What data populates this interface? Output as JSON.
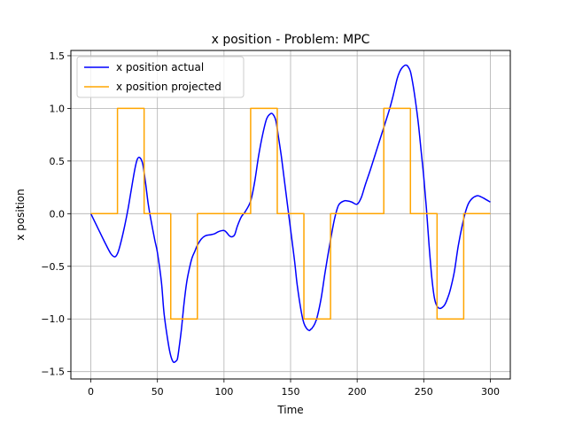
{
  "chart_data": {
    "type": "line",
    "title": "x position - Problem: MPC",
    "xlabel": "Time",
    "ylabel": "x position",
    "xlim": [
      -15,
      315
    ],
    "ylim": [
      -1.57,
      1.55
    ],
    "xticks": [
      0,
      50,
      100,
      150,
      200,
      250,
      300
    ],
    "yticks": [
      -1.5,
      -1.0,
      -0.5,
      0.0,
      0.5,
      1.0,
      1.5
    ],
    "xtick_labels": [
      "0",
      "50",
      "100",
      "150",
      "200",
      "250",
      "300"
    ],
    "ytick_labels": [
      "−1.5",
      "−1.0",
      "−0.5",
      "0.0",
      "0.5",
      "1.0",
      "1.5"
    ],
    "grid": true,
    "legend_position": "upper-left",
    "series": [
      {
        "name": "x position actual",
        "color": "#0000ff",
        "x": [
          0,
          5,
          10,
          15,
          18,
          20,
          22,
          25,
          28,
          30,
          33,
          35,
          37,
          39,
          41,
          43,
          45,
          48,
          50,
          53,
          55,
          58,
          60,
          62,
          64,
          65,
          66,
          68,
          70,
          72,
          74,
          76,
          78,
          80,
          83,
          86,
          90,
          93,
          96,
          100,
          102,
          104,
          106,
          108,
          110,
          113,
          116,
          120,
          123,
          126,
          129,
          132,
          135,
          137,
          139,
          141,
          143,
          145,
          148,
          150,
          153,
          155,
          158,
          160,
          162,
          164,
          165,
          166,
          168,
          170,
          173,
          176,
          180,
          183,
          186,
          190,
          193,
          196,
          200,
          203,
          206,
          210,
          215,
          220,
          224,
          227,
          230,
          232,
          234,
          236,
          237,
          238,
          240,
          242,
          244,
          246,
          248,
          250,
          252,
          254,
          256,
          258,
          260,
          262,
          264,
          266,
          268,
          270,
          273,
          276,
          280,
          283,
          286,
          290,
          293,
          296,
          300
        ],
        "y": [
          0.0,
          -0.13,
          -0.26,
          -0.38,
          -0.41,
          -0.38,
          -0.3,
          -0.14,
          0.05,
          0.2,
          0.42,
          0.52,
          0.53,
          0.47,
          0.3,
          0.1,
          -0.05,
          -0.25,
          -0.37,
          -0.65,
          -0.95,
          -1.22,
          -1.35,
          -1.41,
          -1.4,
          -1.38,
          -1.3,
          -1.1,
          -0.85,
          -0.65,
          -0.52,
          -0.42,
          -0.36,
          -0.3,
          -0.24,
          -0.21,
          -0.2,
          -0.19,
          -0.17,
          -0.16,
          -0.18,
          -0.21,
          -0.22,
          -0.2,
          -0.12,
          -0.03,
          0.02,
          0.12,
          0.3,
          0.55,
          0.75,
          0.9,
          0.95,
          0.94,
          0.88,
          0.72,
          0.55,
          0.35,
          0.05,
          -0.15,
          -0.45,
          -0.68,
          -0.93,
          -1.04,
          -1.09,
          -1.11,
          -1.1,
          -1.09,
          -1.05,
          -0.98,
          -0.8,
          -0.55,
          -0.25,
          -0.05,
          0.08,
          0.12,
          0.12,
          0.11,
          0.09,
          0.15,
          0.27,
          0.42,
          0.62,
          0.82,
          0.98,
          1.12,
          1.28,
          1.35,
          1.39,
          1.41,
          1.41,
          1.4,
          1.35,
          1.22,
          1.05,
          0.85,
          0.6,
          0.35,
          0.05,
          -0.3,
          -0.6,
          -0.8,
          -0.88,
          -0.9,
          -0.89,
          -0.86,
          -0.8,
          -0.72,
          -0.55,
          -0.3,
          -0.05,
          0.08,
          0.14,
          0.17,
          0.16,
          0.14,
          0.11
        ]
      },
      {
        "name": "x position projected",
        "color": "#ffa500",
        "x": [
          0,
          20,
          20,
          40,
          40,
          60,
          60,
          80,
          80,
          120,
          120,
          140,
          140,
          160,
          160,
          180,
          180,
          220,
          220,
          240,
          240,
          260,
          260,
          280,
          280,
          300
        ],
        "y": [
          0,
          0,
          1,
          1,
          0,
          0,
          -1,
          -1,
          0,
          0,
          1,
          1,
          0,
          0,
          -1,
          -1,
          0,
          0,
          1,
          1,
          0,
          0,
          -1,
          -1,
          0,
          0
        ]
      }
    ]
  }
}
